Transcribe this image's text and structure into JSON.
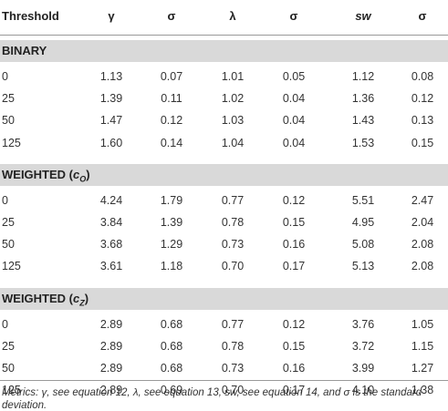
{
  "table": {
    "header": [
      "Threshold",
      "γ",
      "σ",
      "λ",
      "σ",
      "sw",
      "σ"
    ],
    "sections": [
      {
        "title": "BINARY",
        "rows": [
          [
            "0",
            "1.13",
            "0.07",
            "1.01",
            "0.05",
            "1.12",
            "0.08"
          ],
          [
            "25",
            "1.39",
            "0.11",
            "1.02",
            "0.04",
            "1.36",
            "0.12"
          ],
          [
            "50",
            "1.47",
            "0.12",
            "1.03",
            "0.04",
            "1.43",
            "0.13"
          ],
          [
            "125",
            "1.60",
            "0.14",
            "1.04",
            "0.04",
            "1.53",
            "0.15"
          ]
        ]
      },
      {
        "title": "WEIGHTED",
        "symbol": "c",
        "subscript": "O",
        "rows": [
          [
            "0",
            "4.24",
            "1.79",
            "0.77",
            "0.12",
            "5.51",
            "2.47"
          ],
          [
            "25",
            "3.84",
            "1.39",
            "0.78",
            "0.15",
            "4.95",
            "2.04"
          ],
          [
            "50",
            "3.68",
            "1.29",
            "0.73",
            "0.16",
            "5.08",
            "2.08"
          ],
          [
            "125",
            "3.61",
            "1.18",
            "0.70",
            "0.17",
            "5.13",
            "2.08"
          ]
        ]
      },
      {
        "title": "WEIGHTED",
        "symbol": "c",
        "subscript": "Z",
        "rows": [
          [
            "0",
            "2.89",
            "0.68",
            "0.77",
            "0.12",
            "3.76",
            "1.05"
          ],
          [
            "25",
            "2.89",
            "0.68",
            "0.78",
            "0.15",
            "3.72",
            "1.15"
          ],
          [
            "50",
            "2.89",
            "0.68",
            "0.73",
            "0.16",
            "3.99",
            "1.27"
          ],
          [
            "125",
            "2.89",
            "0.69",
            "0.70",
            "0.17",
            "4.10",
            "1.38"
          ]
        ]
      }
    ],
    "footnote": "Metrics: γ, see equation 12, λ, see equation 13, sw, see equation 14, and σ is the standard deviation."
  }
}
